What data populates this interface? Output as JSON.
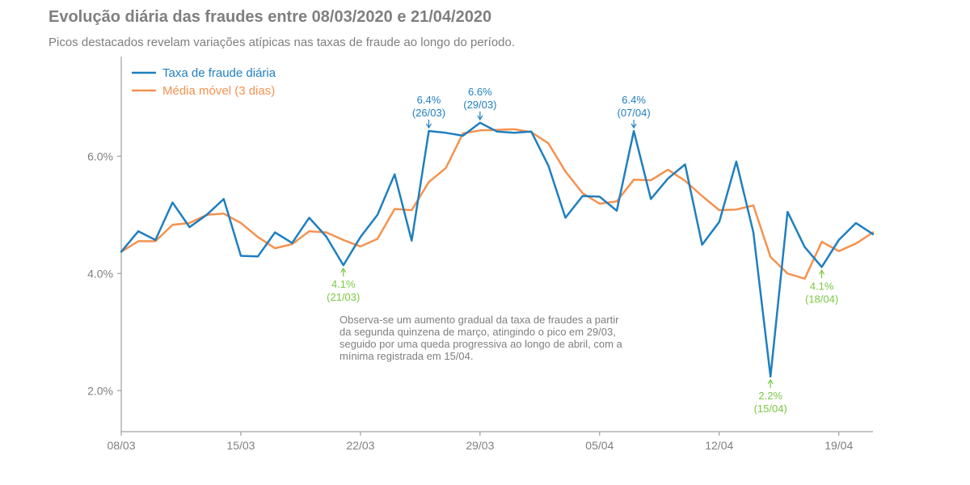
{
  "chart_data": {
    "type": "line",
    "title": "Evolução diária das fraudes entre 08/03/2020 e 21/04/2020",
    "subtitle": "Picos destacados revelam variações atípicas nas taxas de fraude ao longo do período.",
    "xlabel": "",
    "ylabel": "",
    "ylim": [
      1.3,
      7.7
    ],
    "x_start": "2020-03-08",
    "x_ticks": [
      "08/03",
      "15/03",
      "22/03",
      "29/03",
      "05/04",
      "12/04",
      "19/04"
    ],
    "y_ticks": [
      2.0,
      4.0,
      6.0
    ],
    "y_tick_labels": [
      "2.0%",
      "4.0%",
      "6.0%"
    ],
    "grid": false,
    "legend_position": "top-left",
    "x": [
      "2020-03-08",
      "2020-03-09",
      "2020-03-10",
      "2020-03-11",
      "2020-03-12",
      "2020-03-13",
      "2020-03-14",
      "2020-03-15",
      "2020-03-16",
      "2020-03-17",
      "2020-03-18",
      "2020-03-19",
      "2020-03-20",
      "2020-03-21",
      "2020-03-22",
      "2020-03-23",
      "2020-03-24",
      "2020-03-25",
      "2020-03-26",
      "2020-03-27",
      "2020-03-28",
      "2020-03-29",
      "2020-03-30",
      "2020-03-31",
      "2020-04-01",
      "2020-04-02",
      "2020-04-03",
      "2020-04-04",
      "2020-04-05",
      "2020-04-06",
      "2020-04-07",
      "2020-04-08",
      "2020-04-09",
      "2020-04-10",
      "2020-04-11",
      "2020-04-12",
      "2020-04-13",
      "2020-04-14",
      "2020-04-15",
      "2020-04-16",
      "2020-04-17",
      "2020-04-18",
      "2020-04-19",
      "2020-04-20",
      "2020-04-21"
    ],
    "series": [
      {
        "name": "Taxa de fraude diária",
        "color": "#1f7fc0",
        "values": [
          4.37,
          4.72,
          4.57,
          5.21,
          4.79,
          5.0,
          5.27,
          4.3,
          4.29,
          4.7,
          4.52,
          4.95,
          4.63,
          4.14,
          4.62,
          5.0,
          5.69,
          4.56,
          6.43,
          6.4,
          6.35,
          6.57,
          6.42,
          6.4,
          6.42,
          5.84,
          4.95,
          5.32,
          5.31,
          5.07,
          6.43,
          5.27,
          5.62,
          5.86,
          4.49,
          4.88,
          5.91,
          4.7,
          2.24,
          5.05,
          4.45,
          4.11,
          4.57,
          4.86,
          4.67
        ]
      },
      {
        "name": "Média móvel (3 dias)",
        "color": "#f5924f",
        "values": [
          4.37,
          4.55,
          4.55,
          4.83,
          4.86,
          5.0,
          5.02,
          4.86,
          4.62,
          4.43,
          4.5,
          4.72,
          4.7,
          4.57,
          4.46,
          4.59,
          5.1,
          5.08,
          5.56,
          5.8,
          6.39,
          6.44,
          6.45,
          6.46,
          6.41,
          6.22,
          5.74,
          5.37,
          5.19,
          5.23,
          5.6,
          5.59,
          5.77,
          5.58,
          5.32,
          5.08,
          5.09,
          5.16,
          4.28,
          4.0,
          3.91,
          4.54,
          4.38,
          4.51,
          4.7
        ]
      }
    ],
    "annotations": [
      {
        "date": "2020-03-26",
        "value": 6.43,
        "label": "6.4%",
        "sublabel": "(26/03)",
        "kind": "peak",
        "color": "#1f7fc0"
      },
      {
        "date": "2020-03-29",
        "value": 6.57,
        "label": "6.6%",
        "sublabel": "(29/03)",
        "kind": "peak",
        "color": "#1f7fc0"
      },
      {
        "date": "2020-04-07",
        "value": 6.43,
        "label": "6.4%",
        "sublabel": "(07/04)",
        "kind": "peak",
        "color": "#1f7fc0"
      },
      {
        "date": "2020-03-21",
        "value": 4.14,
        "label": "4.1%",
        "sublabel": "(21/03)",
        "kind": "trough",
        "color": "#7ac943"
      },
      {
        "date": "2020-04-15",
        "value": 2.24,
        "label": "2.2%",
        "sublabel": "(15/04)",
        "kind": "trough",
        "color": "#7ac943"
      },
      {
        "date": "2020-04-18",
        "value": 4.11,
        "label": "4.1%",
        "sublabel": "(18/04)",
        "kind": "trough",
        "color": "#7ac943"
      }
    ],
    "note_lines": [
      "Observa-se um aumento gradual da taxa de fraudes a partir",
      "da segunda quinzena de março, atingindo o pico em 29/03,",
      "seguido por uma queda progressiva ao longo de abril, com a",
      "mínima registrada em 15/04."
    ]
  }
}
